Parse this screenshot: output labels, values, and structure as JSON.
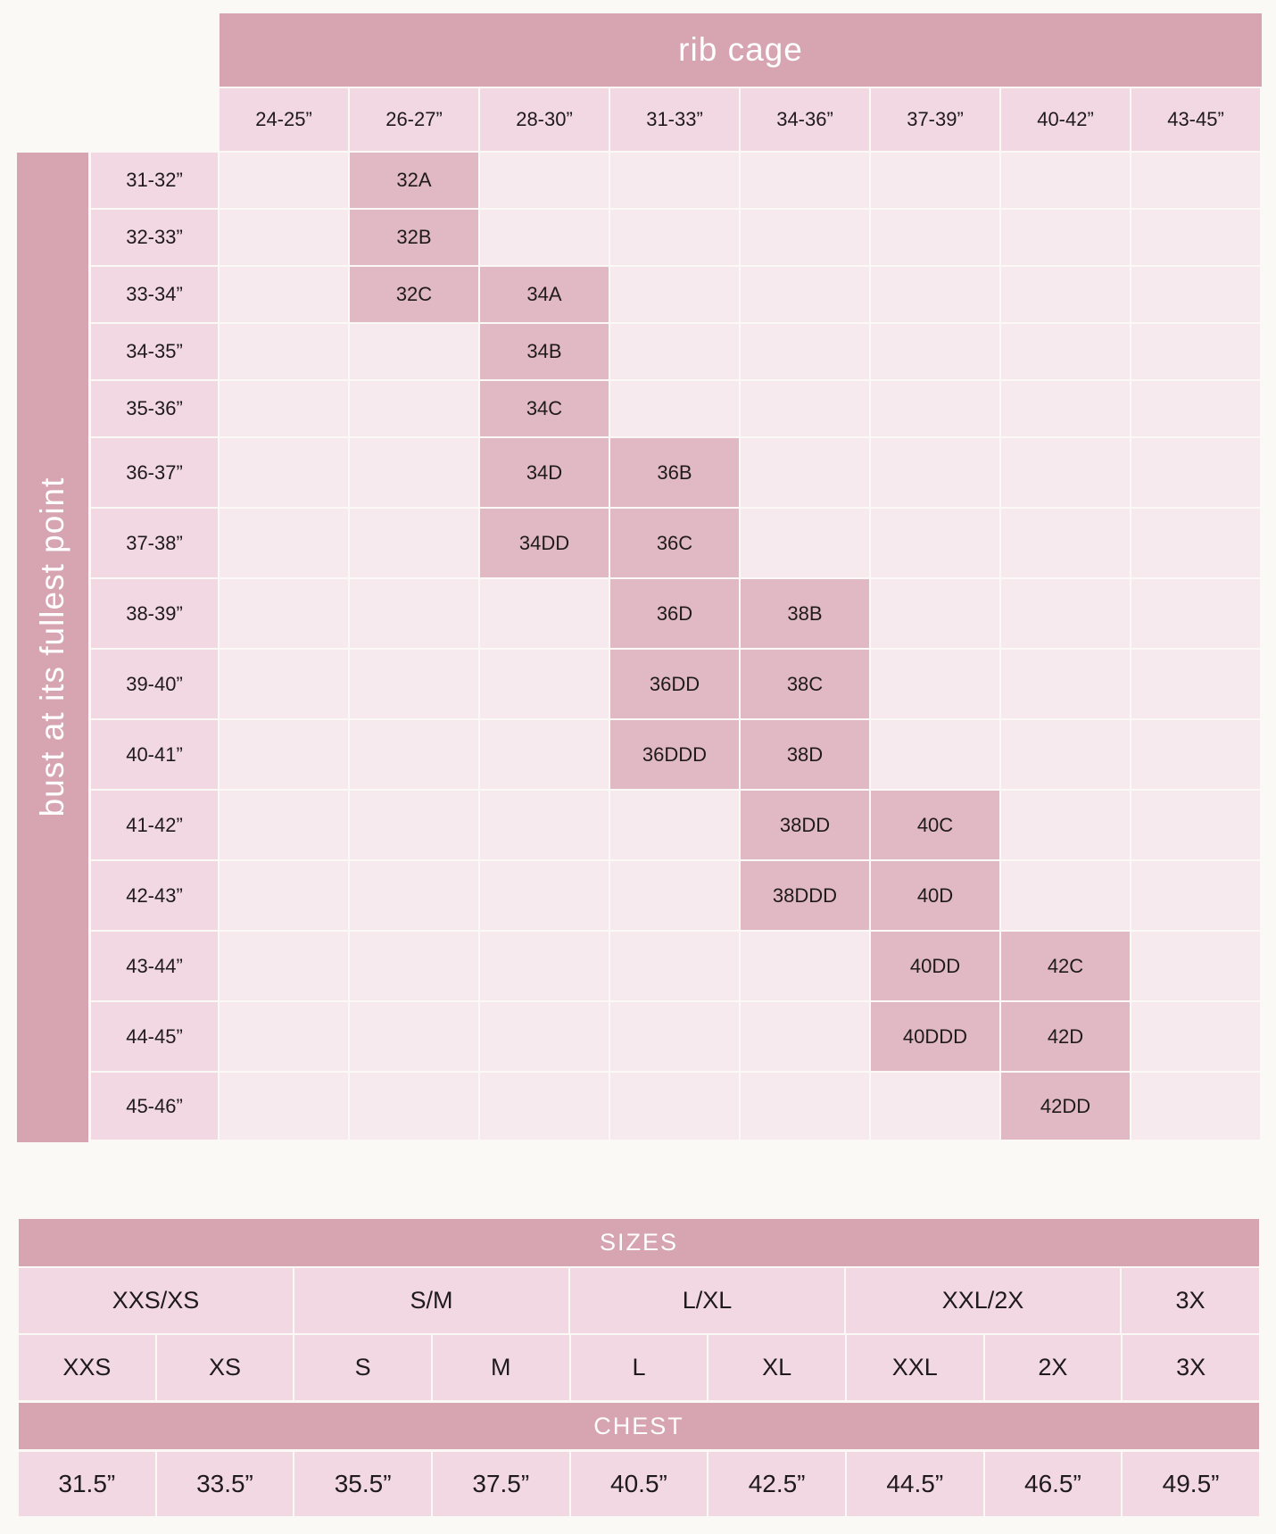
{
  "rib_cage": {
    "title": "rib cage",
    "columns": [
      "24-25”",
      "26-27”",
      "28-30”",
      "31-33”",
      "34-36”",
      "37-39”",
      "40-42”",
      "43-45”"
    ]
  },
  "bust": {
    "title": "bust at its fullest point",
    "rows": [
      {
        "label": "31-32”",
        "cells": [
          "",
          "32A",
          "",
          "",
          "",
          "",
          "",
          ""
        ]
      },
      {
        "label": "32-33”",
        "cells": [
          "",
          "32B",
          "",
          "",
          "",
          "",
          "",
          ""
        ]
      },
      {
        "label": "33-34”",
        "cells": [
          "",
          "32C",
          "34A",
          "",
          "",
          "",
          "",
          ""
        ]
      },
      {
        "label": "34-35”",
        "cells": [
          "",
          "",
          "34B",
          "",
          "",
          "",
          "",
          ""
        ]
      },
      {
        "label": "35-36”",
        "cells": [
          "",
          "",
          "34C",
          "",
          "",
          "",
          "",
          ""
        ]
      },
      {
        "label": "36-37”",
        "cells": [
          "",
          "",
          "34D",
          "36B",
          "",
          "",
          "",
          ""
        ]
      },
      {
        "label": "37-38”",
        "cells": [
          "",
          "",
          "34DD",
          "36C",
          "",
          "",
          "",
          ""
        ]
      },
      {
        "label": "38-39”",
        "cells": [
          "",
          "",
          "",
          "36D",
          "38B",
          "",
          "",
          ""
        ]
      },
      {
        "label": "39-40”",
        "cells": [
          "",
          "",
          "",
          "36DD",
          "38C",
          "",
          "",
          ""
        ]
      },
      {
        "label": "40-41”",
        "cells": [
          "",
          "",
          "",
          "36DDD",
          "38D",
          "",
          "",
          ""
        ]
      },
      {
        "label": "41-42”",
        "cells": [
          "",
          "",
          "",
          "",
          "38DD",
          "40C",
          "",
          ""
        ]
      },
      {
        "label": "42-43”",
        "cells": [
          "",
          "",
          "",
          "",
          "38DDD",
          "40D",
          "",
          ""
        ]
      },
      {
        "label": "43-44”",
        "cells": [
          "",
          "",
          "",
          "",
          "",
          "40DD",
          "42C",
          ""
        ]
      },
      {
        "label": "44-45”",
        "cells": [
          "",
          "",
          "",
          "",
          "",
          "40DDD",
          "42D",
          ""
        ]
      },
      {
        "label": "45-46”",
        "cells": [
          "",
          "",
          "",
          "",
          "",
          "",
          "42DD",
          ""
        ]
      }
    ]
  },
  "sizes": {
    "title": "SIZES",
    "groups": [
      "XXS/XS",
      "S/M",
      "L/XL",
      "XXL/2X",
      "3X"
    ],
    "sizes": [
      "XXS",
      "XS",
      "S",
      "M",
      "L",
      "XL",
      "XXL",
      "2X",
      "3X"
    ]
  },
  "chest": {
    "title": "CHEST",
    "values": [
      "31.5”",
      "33.5”",
      "35.5”",
      "37.5”",
      "40.5”",
      "42.5”",
      "44.5”",
      "46.5”",
      "49.5”"
    ]
  },
  "colors": {
    "header_band": "#d7a4b1",
    "label_cell": "#f1d8e2",
    "empty_cell": "#f7eaef",
    "filled_cell": "#e1b9c4",
    "background": "#fbf9f5"
  }
}
